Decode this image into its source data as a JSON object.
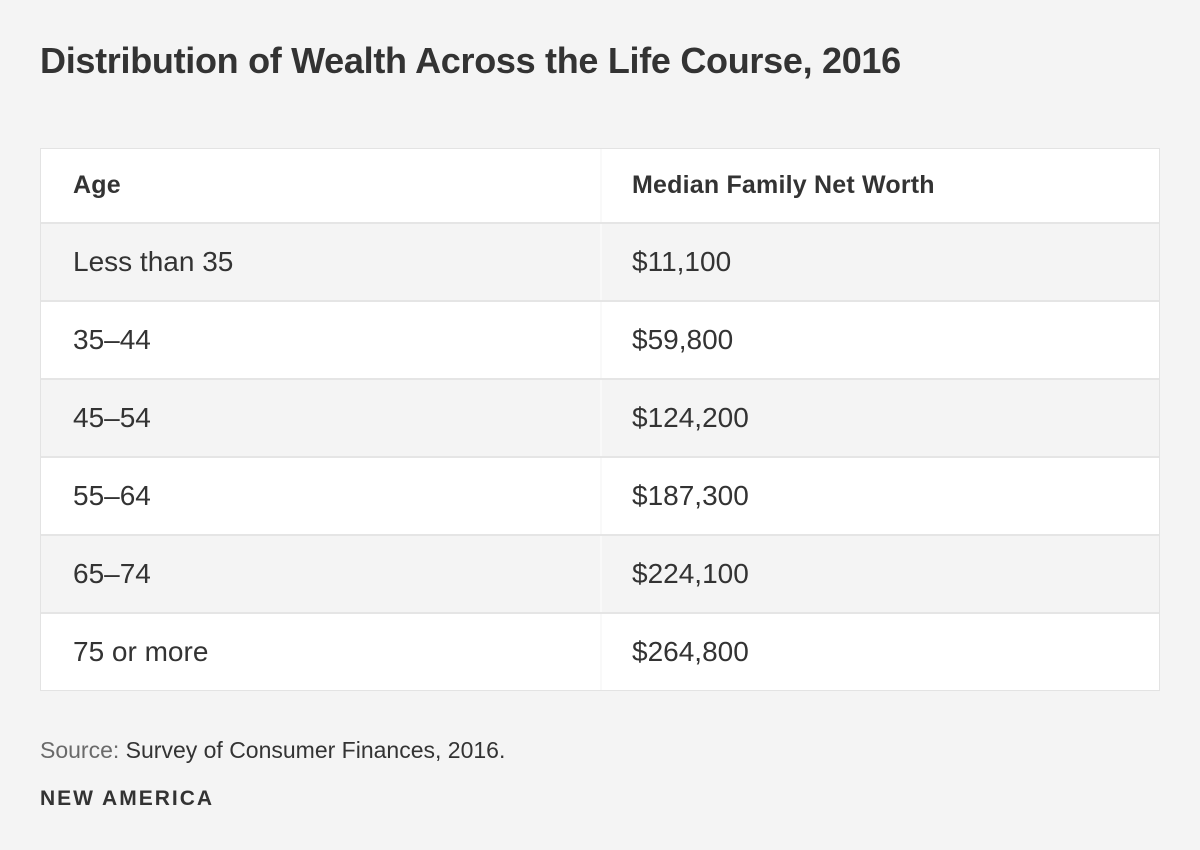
{
  "title": "Distribution of Wealth Across the Life Course, 2016",
  "chart_data": {
    "type": "table",
    "title": "Distribution of Wealth Across the Life Course, 2016",
    "columns": [
      "Age",
      "Median Family Net Worth"
    ],
    "categories": [
      "Less than 35",
      "35–44",
      "45–54",
      "55–64",
      "65–74",
      "75 or more"
    ],
    "values": [
      11100,
      59800,
      124200,
      187300,
      224100,
      264800
    ],
    "values_formatted": [
      "$11,100",
      "$59,800",
      "$124,200",
      "$187,300",
      "$224,100",
      "$264,800"
    ],
    "source": "Source: Survey of Consumer Finances, 2016.",
    "layout": "two-column table, zebra striping (gray/white), header row white"
  },
  "table": {
    "header": {
      "age": "Age",
      "net_worth": "Median Family Net Worth"
    },
    "rows": [
      {
        "age": "Less than 35",
        "net_worth": "$11,100"
      },
      {
        "age": "35–44",
        "net_worth": "$59,800"
      },
      {
        "age": "45–54",
        "net_worth": "$124,200"
      },
      {
        "age": "55–64",
        "net_worth": "$187,300"
      },
      {
        "age": "65–74",
        "net_worth": "$224,100"
      },
      {
        "age": "75 or more",
        "net_worth": "$264,800"
      }
    ]
  },
  "footer": {
    "source_label": "Source:",
    "source_text": " Survey of Consumer Finances, 2016.",
    "brand": "NEW AMERICA"
  },
  "colors": {
    "background": "#f4f4f4",
    "row_white": "#ffffff",
    "row_gray": "#f4f4f4",
    "row_border": "#e5e5e5",
    "column_divider": "#f9f9f9",
    "text": "#333333",
    "source_label_text": "#6a6a6a"
  }
}
